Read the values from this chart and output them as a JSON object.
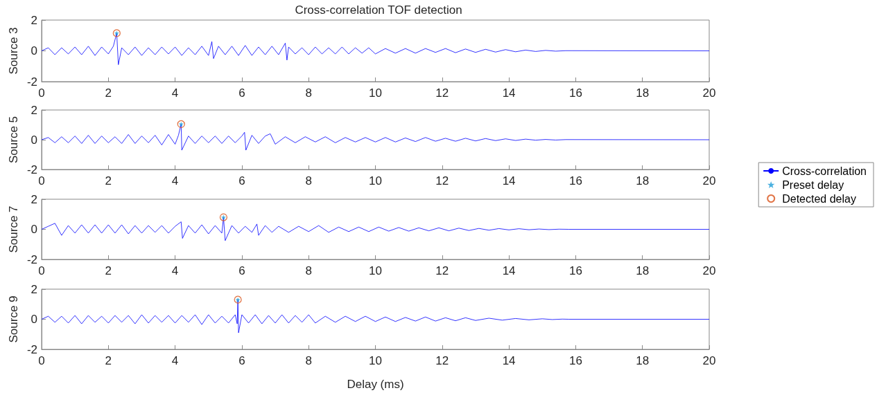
{
  "chart_data": [
    {
      "type": "line",
      "title": "Cross-correlation TOF detection",
      "ylabel": "Source 3",
      "xlim": [
        0,
        20
      ],
      "xticks": [
        0,
        2,
        4,
        6,
        8,
        10,
        12,
        14,
        16,
        18,
        20
      ],
      "ylim": [
        -2,
        2
      ],
      "yticks": [
        -2,
        0,
        2
      ],
      "grid": false,
      "legend": false,
      "series": [
        {
          "marker": "none",
          "color": "#0000ff",
          "x": [
            0,
            0.2,
            0.4,
            0.6,
            0.8,
            1.0,
            1.2,
            1.4,
            1.6,
            1.8,
            2.0,
            2.15,
            2.25,
            2.3,
            2.4,
            2.6,
            2.8,
            3.0,
            3.2,
            3.4,
            3.6,
            3.8,
            4.0,
            4.2,
            4.4,
            4.6,
            4.8,
            5.0,
            5.1,
            5.15,
            5.3,
            5.5,
            5.7,
            5.9,
            6.1,
            6.3,
            6.5,
            6.7,
            6.9,
            7.1,
            7.3,
            7.35,
            7.4,
            7.6,
            7.8,
            8.0,
            8.2,
            8.4,
            8.6,
            8.8,
            9.0,
            9.2,
            9.4,
            9.6,
            9.8,
            10.0,
            10.3,
            10.6,
            10.9,
            11.2,
            11.5,
            11.8,
            12.1,
            12.4,
            12.7,
            13.0,
            13.3,
            13.6,
            13.9,
            14.2,
            14.5,
            14.8,
            15.1,
            15.4,
            15.7,
            20
          ],
          "values": [
            0,
            0.2,
            -0.25,
            0.2,
            -0.2,
            0.25,
            -0.25,
            0.3,
            -0.3,
            0.25,
            -0.2,
            0.3,
            1.15,
            -0.9,
            0.2,
            -0.25,
            0.25,
            -0.3,
            0.2,
            -0.25,
            0.25,
            -0.2,
            0.25,
            -0.3,
            0.2,
            -0.25,
            0.3,
            -0.3,
            0.6,
            -0.5,
            0.3,
            -0.25,
            0.3,
            -0.3,
            0.35,
            -0.3,
            0.25,
            -0.25,
            0.3,
            -0.25,
            0.5,
            -0.6,
            0.25,
            -0.2,
            0.2,
            -0.25,
            0.25,
            -0.2,
            0.2,
            -0.2,
            0.25,
            -0.2,
            0.2,
            -0.15,
            0.2,
            -0.2,
            0.15,
            -0.15,
            0.15,
            -0.15,
            0.15,
            -0.1,
            0.15,
            -0.12,
            0.12,
            -0.1,
            0.1,
            -0.08,
            0.08,
            -0.06,
            0.05,
            -0.04,
            0.03,
            -0.02,
            0.01,
            0
          ]
        },
        {
          "type": "scatter",
          "marker": "star",
          "color": "#1f9ed8",
          "x": [
            2.25
          ],
          "values": [
            1.15
          ]
        },
        {
          "type": "scatter",
          "marker": "circle",
          "color": "#d95319",
          "x": [
            2.25
          ],
          "values": [
            1.15
          ]
        }
      ]
    },
    {
      "type": "line",
      "ylabel": "Source 5",
      "xlim": [
        0,
        20
      ],
      "xticks": [
        0,
        2,
        4,
        6,
        8,
        10,
        12,
        14,
        16,
        18,
        20
      ],
      "ylim": [
        -2,
        2
      ],
      "yticks": [
        -2,
        0,
        2
      ],
      "grid": false,
      "legend": "right",
      "series": [
        {
          "name": "Cross-correlation",
          "marker": "none",
          "color": "#0000ff",
          "x": [
            0,
            0.2,
            0.4,
            0.6,
            0.8,
            1.0,
            1.2,
            1.4,
            1.6,
            1.8,
            2.0,
            2.2,
            2.4,
            2.6,
            2.8,
            3.0,
            3.2,
            3.4,
            3.6,
            3.8,
            4.0,
            4.1,
            4.18,
            4.2,
            4.4,
            4.6,
            4.8,
            5.0,
            5.2,
            5.4,
            5.6,
            5.8,
            6.0,
            6.08,
            6.12,
            6.3,
            6.5,
            6.7,
            6.85,
            7.0,
            7.3,
            7.6,
            7.9,
            8.2,
            8.5,
            8.8,
            9.1,
            9.4,
            9.7,
            10.0,
            10.3,
            10.6,
            10.9,
            11.2,
            11.5,
            11.8,
            12.1,
            12.4,
            12.7,
            13.0,
            13.3,
            13.6,
            13.9,
            14.2,
            14.5,
            14.8,
            15.1,
            15.4,
            15.7,
            20
          ],
          "values": [
            0,
            0.15,
            -0.2,
            0.2,
            -0.2,
            0.25,
            -0.25,
            0.3,
            -0.25,
            0.25,
            -0.2,
            0.2,
            -0.25,
            0.35,
            -0.25,
            0.25,
            -0.2,
            0.3,
            -0.35,
            0.35,
            -0.3,
            0.3,
            1.05,
            -0.7,
            0.25,
            -0.25,
            0.25,
            -0.2,
            0.25,
            -0.25,
            0.25,
            -0.2,
            0.25,
            0.5,
            -0.7,
            0.3,
            -0.25,
            0.25,
            0.4,
            -0.3,
            0.2,
            -0.2,
            0.2,
            -0.15,
            0.2,
            -0.2,
            0.15,
            -0.15,
            0.15,
            -0.15,
            0.15,
            -0.15,
            0.12,
            -0.12,
            0.15,
            -0.1,
            0.1,
            -0.1,
            0.1,
            -0.08,
            0.08,
            -0.06,
            0.06,
            -0.05,
            0.04,
            -0.03,
            0.02,
            -0.02,
            0.01,
            0
          ]
        },
        {
          "type": "scatter",
          "name": "Preset delay",
          "marker": "star",
          "color": "#1f9ed8",
          "x": [
            4.18
          ],
          "values": [
            1.05
          ]
        },
        {
          "type": "scatter",
          "name": "Detected delay",
          "marker": "circle",
          "color": "#d95319",
          "x": [
            4.18
          ],
          "values": [
            1.05
          ]
        }
      ]
    },
    {
      "type": "line",
      "ylabel": "Source 7",
      "xlim": [
        0,
        20
      ],
      "xticks": [
        0,
        2,
        4,
        6,
        8,
        10,
        12,
        14,
        16,
        18,
        20
      ],
      "ylim": [
        -2,
        2
      ],
      "yticks": [
        -2,
        0,
        2
      ],
      "grid": false,
      "legend": false,
      "series": [
        {
          "marker": "none",
          "color": "#0000ff",
          "x": [
            0,
            0.2,
            0.4,
            0.6,
            0.8,
            1.0,
            1.2,
            1.4,
            1.6,
            1.8,
            2.0,
            2.2,
            2.4,
            2.6,
            2.8,
            3.0,
            3.2,
            3.4,
            3.6,
            3.8,
            4.0,
            4.18,
            4.22,
            4.4,
            4.6,
            4.8,
            5.0,
            5.2,
            5.4,
            5.45,
            5.5,
            5.7,
            5.9,
            6.1,
            6.3,
            6.45,
            6.5,
            6.7,
            6.9,
            7.1,
            7.4,
            7.7,
            8.0,
            8.3,
            8.6,
            8.9,
            9.2,
            9.5,
            9.8,
            10.1,
            10.4,
            10.7,
            11.0,
            11.3,
            11.6,
            11.9,
            12.2,
            12.5,
            12.8,
            13.1,
            13.4,
            13.7,
            14.0,
            14.3,
            14.6,
            14.9,
            15.2,
            15.5,
            15.8,
            20
          ],
          "values": [
            0,
            0.2,
            0.4,
            -0.4,
            0.25,
            -0.25,
            0.3,
            -0.25,
            0.3,
            -0.25,
            0.3,
            -0.25,
            0.3,
            -0.3,
            0.25,
            -0.25,
            0.25,
            -0.2,
            0.25,
            -0.25,
            0.2,
            0.5,
            -0.6,
            0.25,
            -0.25,
            0.3,
            -0.3,
            0.25,
            -0.25,
            0.8,
            -0.75,
            0.25,
            -0.25,
            0.2,
            -0.2,
            0.35,
            -0.4,
            0.25,
            -0.2,
            0.2,
            -0.2,
            0.2,
            -0.15,
            0.25,
            -0.2,
            0.15,
            -0.15,
            0.15,
            -0.15,
            0.15,
            -0.12,
            0.12,
            -0.12,
            0.1,
            -0.1,
            0.1,
            -0.1,
            0.08,
            -0.08,
            0.06,
            -0.06,
            0.05,
            -0.04,
            0.04,
            -0.03,
            0.02,
            -0.02,
            0.01,
            0,
            0
          ]
        },
        {
          "type": "scatter",
          "marker": "star",
          "color": "#1f9ed8",
          "x": [
            5.45
          ],
          "values": [
            0.8
          ]
        },
        {
          "type": "scatter",
          "marker": "circle",
          "color": "#d95319",
          "x": [
            5.45
          ],
          "values": [
            0.8
          ]
        }
      ]
    },
    {
      "type": "line",
      "ylabel": "Source 9",
      "xlabel": "Delay (ms)",
      "xlim": [
        0,
        20
      ],
      "xticks": [
        0,
        2,
        4,
        6,
        8,
        10,
        12,
        14,
        16,
        18,
        20
      ],
      "ylim": [
        -2,
        2
      ],
      "yticks": [
        -2,
        0,
        2
      ],
      "grid": false,
      "legend": false,
      "series": [
        {
          "marker": "none",
          "color": "#0000ff",
          "x": [
            0,
            0.2,
            0.4,
            0.6,
            0.8,
            1.0,
            1.2,
            1.4,
            1.6,
            1.8,
            2.0,
            2.2,
            2.4,
            2.6,
            2.8,
            3.0,
            3.2,
            3.4,
            3.6,
            3.8,
            4.0,
            4.2,
            4.4,
            4.6,
            4.8,
            5.0,
            5.2,
            5.4,
            5.6,
            5.8,
            5.86,
            5.88,
            5.9,
            6.0,
            6.2,
            6.4,
            6.6,
            6.8,
            7.0,
            7.2,
            7.4,
            7.6,
            7.8,
            8.0,
            8.2,
            8.5,
            8.8,
            9.1,
            9.4,
            9.7,
            10.0,
            10.3,
            10.6,
            10.9,
            11.2,
            11.5,
            11.8,
            12.1,
            12.4,
            12.7,
            13.0,
            13.4,
            13.8,
            14.2,
            14.6,
            15.0,
            15.3,
            15.6,
            15.8,
            20
          ],
          "values": [
            0,
            0.2,
            -0.2,
            0.2,
            -0.25,
            0.25,
            -0.3,
            0.25,
            -0.2,
            0.2,
            -0.25,
            0.25,
            -0.2,
            0.25,
            -0.3,
            0.3,
            -0.25,
            0.25,
            -0.2,
            0.25,
            -0.25,
            0.25,
            -0.2,
            0.3,
            -0.35,
            0.3,
            -0.25,
            0.2,
            -0.25,
            0.3,
            -0.3,
            1.3,
            -0.9,
            0.3,
            -0.25,
            0.3,
            -0.3,
            0.25,
            -0.25,
            0.3,
            -0.25,
            0.25,
            -0.2,
            0.3,
            -0.25,
            0.2,
            -0.2,
            0.2,
            -0.15,
            0.2,
            -0.15,
            0.15,
            -0.15,
            0.12,
            -0.12,
            0.15,
            -0.12,
            0.1,
            -0.1,
            0.1,
            -0.08,
            0.07,
            -0.06,
            0.05,
            -0.04,
            0.03,
            -0.02,
            0.01,
            0,
            0
          ]
        },
        {
          "type": "scatter",
          "marker": "star",
          "color": "#1f9ed8",
          "x": [
            5.88
          ],
          "values": [
            1.3
          ]
        },
        {
          "type": "scatter",
          "marker": "circle",
          "color": "#d95319",
          "x": [
            5.88
          ],
          "values": [
            1.3
          ]
        }
      ]
    }
  ]
}
